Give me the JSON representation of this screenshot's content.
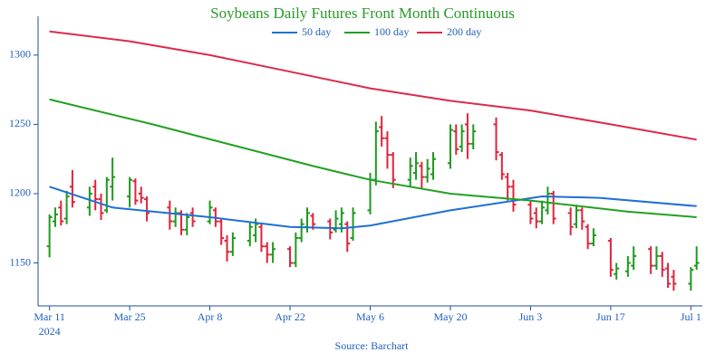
{
  "chart_data": {
    "type": "ohlc",
    "title": "Soybeans Daily Futures Front Month Continuous",
    "source": "Source: Barchart",
    "up_color": "#1e9a1e",
    "down_color": "#e0243c",
    "x": [
      "2024-03-11",
      "2024-03-12",
      "2024-03-13",
      "2024-03-14",
      "2024-03-15",
      "2024-03-18",
      "2024-03-19",
      "2024-03-20",
      "2024-03-21",
      "2024-03-22",
      "2024-03-25",
      "2024-03-26",
      "2024-03-27",
      "2024-03-28",
      "2024-04-01",
      "2024-04-02",
      "2024-04-03",
      "2024-04-04",
      "2024-04-05",
      "2024-04-08",
      "2024-04-09",
      "2024-04-10",
      "2024-04-11",
      "2024-04-12",
      "2024-04-15",
      "2024-04-16",
      "2024-04-17",
      "2024-04-18",
      "2024-04-19",
      "2024-04-22",
      "2024-04-23",
      "2024-04-24",
      "2024-04-25",
      "2024-04-26",
      "2024-04-29",
      "2024-04-30",
      "2024-05-01",
      "2024-05-02",
      "2024-05-03",
      "2024-05-06",
      "2024-05-07",
      "2024-05-08",
      "2024-05-09",
      "2024-05-10",
      "2024-05-13",
      "2024-05-14",
      "2024-05-15",
      "2024-05-16",
      "2024-05-17",
      "2024-05-20",
      "2024-05-21",
      "2024-05-22",
      "2024-05-23",
      "2024-05-24",
      "2024-05-28",
      "2024-05-29",
      "2024-05-30",
      "2024-05-31",
      "2024-06-03",
      "2024-06-04",
      "2024-06-05",
      "2024-06-06",
      "2024-06-07",
      "2024-06-10",
      "2024-06-11",
      "2024-06-12",
      "2024-06-13",
      "2024-06-14",
      "2024-06-17",
      "2024-06-18",
      "2024-06-20",
      "2024-06-21",
      "2024-06-24",
      "2024-06-25",
      "2024-06-26",
      "2024-06-27",
      "2024-06-28",
      "2024-07-01",
      "2024-07-02"
    ],
    "open": [
      1162,
      1180,
      1190,
      1182,
      1205,
      1190,
      1205,
      1196,
      1188,
      1205,
      1198,
      1209,
      1200,
      1196,
      1190,
      1180,
      1186,
      1174,
      1186,
      1180,
      1188,
      1180,
      1166,
      1158,
      1166,
      1170,
      1176,
      1162,
      1156,
      1160,
      1150,
      1168,
      1176,
      1184,
      1180,
      1174,
      1178,
      1178,
      1168,
      1188,
      1210,
      1248,
      1240,
      1228,
      1210,
      1215,
      1220,
      1212,
      1214,
      1222,
      1245,
      1234,
      1250,
      1236,
      1250,
      1228,
      1212,
      1205,
      1192,
      1186,
      1180,
      1188,
      1200,
      1186,
      1178,
      1188,
      1176,
      1164,
      1166,
      1142,
      1144,
      1148,
      1160,
      1148,
      1155,
      1146,
      1140,
      1135,
      1148
    ],
    "high": [
      1185,
      1190,
      1195,
      1202,
      1217,
      1205,
      1210,
      1200,
      1212,
      1226,
      1212,
      1211,
      1205,
      1198,
      1195,
      1190,
      1188,
      1186,
      1190,
      1195,
      1190,
      1182,
      1170,
      1172,
      1180,
      1182,
      1178,
      1165,
      1165,
      1162,
      1172,
      1182,
      1190,
      1186,
      1182,
      1188,
      1190,
      1180,
      1190,
      1215,
      1252,
      1256,
      1245,
      1230,
      1226,
      1230,
      1223,
      1225,
      1230,
      1250,
      1250,
      1250,
      1258,
      1250,
      1255,
      1230,
      1215,
      1210,
      1195,
      1190,
      1195,
      1205,
      1202,
      1190,
      1192,
      1190,
      1178,
      1175,
      1168,
      1150,
      1155,
      1162,
      1162,
      1162,
      1158,
      1150,
      1145,
      1147,
      1162
    ],
    "low": [
      1154,
      1176,
      1177,
      1178,
      1190,
      1184,
      1188,
      1181,
      1186,
      1195,
      1190,
      1192,
      1193,
      1180,
      1174,
      1176,
      1170,
      1170,
      1176,
      1178,
      1176,
      1163,
      1151,
      1155,
      1162,
      1165,
      1158,
      1150,
      1150,
      1147,
      1147,
      1165,
      1172,
      1174,
      1167,
      1172,
      1172,
      1158,
      1166,
      1185,
      1206,
      1234,
      1218,
      1204,
      1205,
      1210,
      1204,
      1208,
      1210,
      1218,
      1228,
      1230,
      1225,
      1232,
      1224,
      1210,
      1195,
      1187,
      1178,
      1175,
      1178,
      1185,
      1178,
      1170,
      1175,
      1174,
      1160,
      1162,
      1140,
      1138,
      1140,
      1145,
      1142,
      1145,
      1140,
      1132,
      1130,
      1130,
      1145
    ],
    "close": [
      1183,
      1185,
      1180,
      1198,
      1194,
      1200,
      1196,
      1186,
      1210,
      1212,
      1210,
      1195,
      1197,
      1186,
      1180,
      1186,
      1174,
      1183,
      1180,
      1190,
      1180,
      1168,
      1158,
      1168,
      1176,
      1178,
      1162,
      1156,
      1160,
      1150,
      1168,
      1178,
      1186,
      1178,
      1172,
      1182,
      1186,
      1164,
      1186,
      1210,
      1245,
      1240,
      1228,
      1210,
      1220,
      1222,
      1212,
      1218,
      1225,
      1246,
      1232,
      1245,
      1236,
      1245,
      1230,
      1214,
      1205,
      1192,
      1182,
      1180,
      1190,
      1200,
      1182,
      1176,
      1188,
      1180,
      1164,
      1170,
      1145,
      1146,
      1150,
      1155,
      1148,
      1155,
      1145,
      1135,
      1135,
      1145,
      1150
    ],
    "lines": [
      {
        "name": "50 day",
        "color": "#1f6fd6",
        "x": [
          "2024-03-11",
          "2024-03-22",
          "2024-04-08",
          "2024-04-22",
          "2024-05-01",
          "2024-05-06",
          "2024-05-20",
          "2024-06-05",
          "2024-06-15",
          "2024-07-02"
        ],
        "values": [
          1205,
          1190,
          1183,
          1176,
          1175,
          1177,
          1188,
          1198,
          1197,
          1191
        ]
      },
      {
        "name": "100 day",
        "color": "#22a022",
        "x": [
          "2024-03-11",
          "2024-03-29",
          "2024-04-12",
          "2024-04-26",
          "2024-05-06",
          "2024-05-20",
          "2024-06-03",
          "2024-06-20",
          "2024-07-02"
        ],
        "values": [
          1268,
          1250,
          1235,
          1220,
          1210,
          1200,
          1195,
          1187,
          1183
        ]
      },
      {
        "name": "200 day",
        "color": "#dc2a4a",
        "x": [
          "2024-03-11",
          "2024-03-25",
          "2024-04-08",
          "2024-04-22",
          "2024-05-06",
          "2024-05-20",
          "2024-06-03",
          "2024-06-17",
          "2024-07-02"
        ],
        "values": [
          1317,
          1310,
          1300,
          1288,
          1276,
          1267,
          1260,
          1250,
          1239
        ]
      }
    ],
    "xlim": [
      "2024-03-09",
      "2024-07-03"
    ],
    "xticks": [
      {
        "value": "2024-03-11",
        "label": "Mar 11",
        "sublabel": "2024"
      },
      {
        "value": "2024-03-25",
        "label": "Mar 25"
      },
      {
        "value": "2024-04-08",
        "label": "Apr 8"
      },
      {
        "value": "2024-04-22",
        "label": "Apr 22"
      },
      {
        "value": "2024-05-06",
        "label": "May 6"
      },
      {
        "value": "2024-05-20",
        "label": "May 20"
      },
      {
        "value": "2024-06-03",
        "label": "Jun 3"
      },
      {
        "value": "2024-06-17",
        "label": "Jun 17"
      },
      {
        "value": "2024-07-01",
        "label": "Jul 1"
      }
    ],
    "ylim": [
      1119,
      1328
    ],
    "yticks": [
      1150,
      1200,
      1250,
      1300
    ]
  }
}
